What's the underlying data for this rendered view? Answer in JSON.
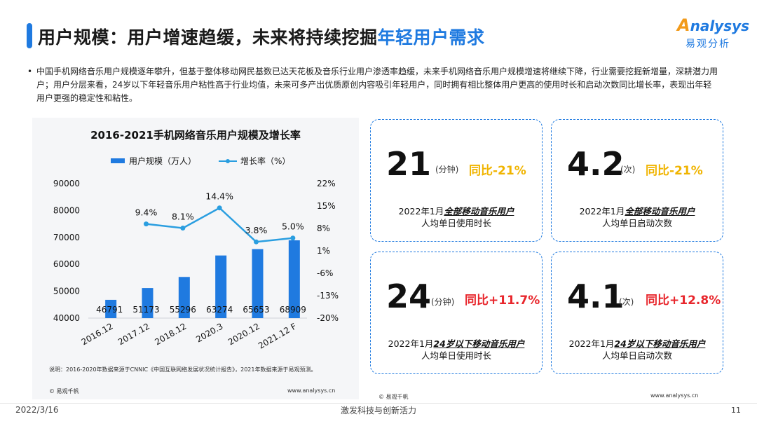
{
  "header": {
    "title_main": "用户规模：用户增速趋缓，未来将持续挖掘",
    "title_highlight": "年轻用户需求",
    "logo_word": "nalysys",
    "logo_letter": "A",
    "logo_cn": "易观分析"
  },
  "summary": {
    "bullet": "•",
    "text": "中国手机网络音乐用户规模逐年攀升，但基于整体移动网民基数已达天花板及音乐行业用户渗透率趋缓，未来手机网络音乐用户规模增速将继续下降，行业需要挖掘新增量，深耕潜力用户；用户分层来看，24岁以下年轻音乐用户粘性高于行业均值，未来可多产出优质原创内容吸引年轻用户，同时拥有相比整体用户更高的使用时长和启动次数同比增长率，表现出年轻用户更强的稳定性和粘性。"
  },
  "chart_data": {
    "type": "bar",
    "title": "2016-2021手机网络音乐用户规模及增长率",
    "categories": [
      "2016.12",
      "2017.12",
      "2018.12",
      "2020.3",
      "2020.12",
      "2021.12 F"
    ],
    "series": [
      {
        "name": "用户规模（万人）",
        "type": "bar",
        "axis": "left",
        "values": [
          46791,
          51173,
          55296,
          63274,
          65653,
          68909
        ]
      },
      {
        "name": "增长率（%）",
        "type": "line",
        "axis": "right",
        "values": [
          null,
          9.4,
          8.1,
          14.4,
          3.8,
          5.0
        ]
      }
    ],
    "bar_labels": [
      "46791",
      "51173",
      "55296",
      "63274",
      "65653",
      "68909"
    ],
    "line_labels": [
      "",
      "9.4%",
      "8.1%",
      "14.4%",
      "3.8%",
      "5.0%"
    ],
    "y_left_ticks": [
      "90000",
      "80000",
      "70000",
      "60000",
      "50000",
      "40000"
    ],
    "y_right_ticks": [
      "22%",
      "15%",
      "8%",
      "1%",
      "-6%",
      "-13%",
      "-20%"
    ],
    "ylim_left": [
      40000,
      90000
    ],
    "ylim_right": [
      -20,
      22
    ],
    "colors": {
      "bar": "#1f7ae0",
      "line": "#2a9ee0"
    },
    "legend_position": "top"
  },
  "chart_footnote": "说明：2016-2020年数据来源于CNNIC《中国互联网络发展状况统计报告》，2021年数据来源于易观预测。",
  "sources": {
    "left_brand": "© 易观千帆",
    "left_site": "www.analysys.cn",
    "right_brand": "© 易观千帆",
    "right_site": "www.analysys.cn"
  },
  "cards": [
    {
      "value": "21",
      "unit": "(分钟)",
      "yoy": "同比-21%",
      "direction": "down",
      "desc_prefix": "2022年1月",
      "desc_em": "全部移动音乐用户",
      "desc_line2": "人均单日使用时长"
    },
    {
      "value": "4.2",
      "unit": "(次)",
      "yoy": "同比-21%",
      "direction": "down",
      "desc_prefix": "2022年1月",
      "desc_em": "全部移动音乐用户",
      "desc_line2": "人均单日启动次数"
    },
    {
      "value": "24",
      "unit": "(分钟)",
      "yoy": "同比+11.7%",
      "direction": "up",
      "desc_prefix": "2022年1月",
      "desc_em": "24岁以下移动音乐用户",
      "desc_line2": "人均单日使用时长"
    },
    {
      "value": "4.1",
      "unit": "(次)",
      "yoy": "同比+12.8%",
      "direction": "up",
      "desc_prefix": "2022年1月",
      "desc_em": "24岁以下移动音乐用户",
      "desc_line2": "人均单日启动次数"
    }
  ],
  "footer": {
    "date": "2022/3/16",
    "slogan": "激发科技与创新活力",
    "page": "11"
  }
}
